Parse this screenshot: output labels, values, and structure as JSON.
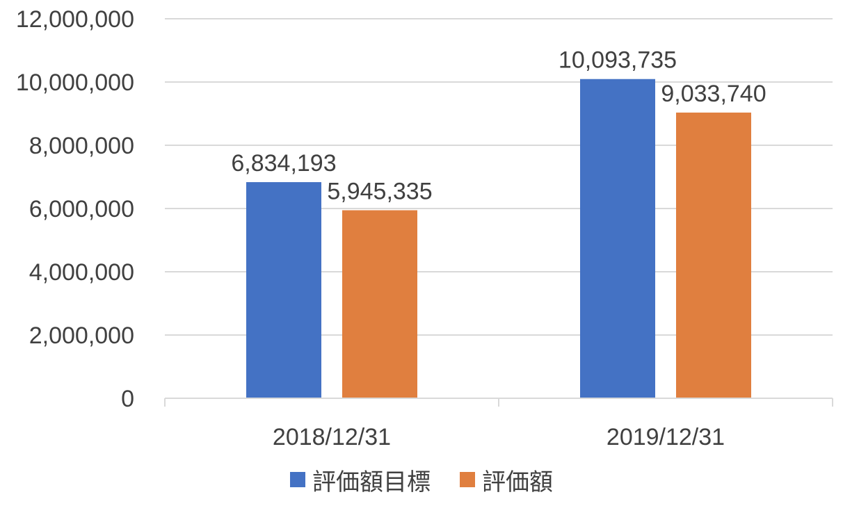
{
  "chart_data": {
    "type": "bar",
    "categories": [
      "2018/12/31",
      "2019/12/31"
    ],
    "series": [
      {
        "name": "評価額目標",
        "color": "#4472C4",
        "values": [
          6834193,
          10093735
        ],
        "labels": [
          "6,834,193",
          "10,093,735"
        ]
      },
      {
        "name": "評価額",
        "color": "#E07F3F",
        "values": [
          5945335,
          9033740
        ],
        "labels": [
          "5,945,335",
          "9,033,740"
        ]
      }
    ],
    "ylim": [
      0,
      12000000
    ],
    "yticks": [
      0,
      2000000,
      4000000,
      6000000,
      8000000,
      10000000,
      12000000
    ],
    "ytick_labels": [
      "0",
      "2,000,000",
      "4,000,000",
      "6,000,000",
      "8,000,000",
      "10,000,000",
      "12,000,000"
    ],
    "grid": true,
    "legend_position": "bottom",
    "title": "",
    "xlabel": "",
    "ylabel": ""
  }
}
